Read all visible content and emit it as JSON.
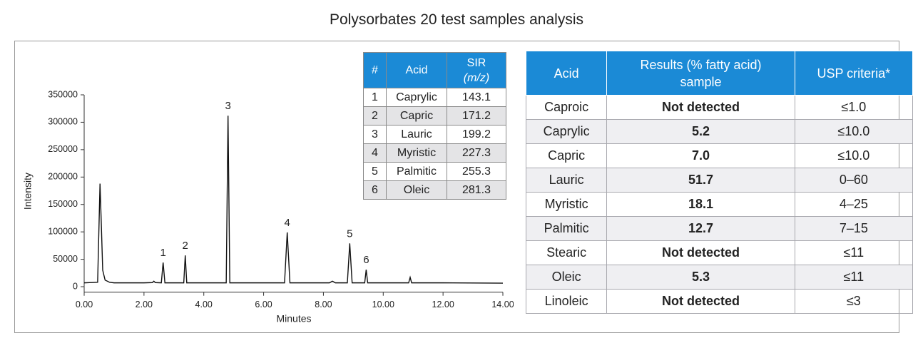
{
  "title": "Polysorbates 20 test samples analysis",
  "chart_data": {
    "type": "line",
    "x_label": "Minutes",
    "y_label": "Intensity",
    "x": [
      0,
      0.45,
      0.5,
      0.53,
      0.57,
      0.62,
      0.7,
      0.85,
      1.0,
      2.0,
      2.28,
      2.33,
      2.38,
      2.58,
      2.64,
      2.7,
      3.0,
      3.33,
      3.38,
      3.43,
      4.0,
      4.75,
      4.81,
      4.87,
      5.5,
      6.7,
      6.79,
      6.88,
      7.5,
      8.2,
      8.3,
      8.4,
      8.8,
      8.88,
      8.96,
      9.38,
      9.43,
      9.48,
      10.0,
      10.85,
      10.9,
      10.95,
      12.0,
      14.0
    ],
    "values": [
      7000,
      8000,
      120000,
      188000,
      120000,
      30000,
      12000,
      8000,
      7000,
      7000,
      7500,
      10000,
      7500,
      7000,
      44000,
      7000,
      7000,
      7000,
      57000,
      7000,
      7000,
      7000,
      312000,
      7000,
      7000,
      7000,
      99000,
      7000,
      7000,
      7000,
      10000,
      7000,
      7000,
      79000,
      7000,
      7000,
      31000,
      7000,
      7000,
      7000,
      17000,
      7000,
      7000,
      6500
    ],
    "color": "#111111",
    "peak_labels": [
      {
        "text": "1",
        "x": 2.64
      },
      {
        "text": "2",
        "x": 3.38
      },
      {
        "text": "3",
        "x": 4.81
      },
      {
        "text": "4",
        "x": 6.79
      },
      {
        "text": "5",
        "x": 8.88
      },
      {
        "text": "6",
        "x": 9.43
      }
    ],
    "xlim": [
      0,
      14
    ],
    "xticks": [
      {
        "value": 0,
        "label": "0.00"
      },
      {
        "value": 2,
        "label": "2.00"
      },
      {
        "value": 4,
        "label": "4.00"
      },
      {
        "value": 6,
        "label": "6.00"
      },
      {
        "value": 8,
        "label": "8.00"
      },
      {
        "value": 10,
        "label": "10.00"
      },
      {
        "value": 12,
        "label": "12.00"
      },
      {
        "value": 14,
        "label": "14.00"
      }
    ],
    "ylim": [
      -10000,
      350000
    ],
    "yticks": [
      0,
      50000,
      100000,
      150000,
      200000,
      250000,
      300000,
      350000
    ]
  },
  "peak_table": {
    "header": [
      "#",
      "Acid",
      "SIR",
      "(m/z)"
    ],
    "rows": [
      [
        "1",
        "Caprylic",
        "143.1"
      ],
      [
        "2",
        "Capric",
        "171.2"
      ],
      [
        "3",
        "Lauric",
        "199.2"
      ],
      [
        "4",
        "Myristic",
        "227.3"
      ],
      [
        "5",
        "Palmitic",
        "255.3"
      ],
      [
        "6",
        "Oleic",
        "281.3"
      ]
    ]
  },
  "results_table": {
    "header": [
      "Acid",
      "Results (% fatty acid) sample",
      "USP criteria*"
    ],
    "rows": [
      [
        "Caproic",
        "Not detected",
        "≤1.0"
      ],
      [
        "Caprylic",
        "5.2",
        "≤10.0"
      ],
      [
        "Capric",
        "7.0",
        "≤10.0"
      ],
      [
        "Lauric",
        "51.7",
        "0–60"
      ],
      [
        "Myristic",
        "18.1",
        "4–25"
      ],
      [
        "Palmitic",
        "12.7",
        "7–15"
      ],
      [
        "Stearic",
        "Not detected",
        "≤11"
      ],
      [
        "Oleic",
        "5.3",
        "≤11"
      ],
      [
        "Linoleic",
        "Not detected",
        "≤3"
      ]
    ]
  }
}
